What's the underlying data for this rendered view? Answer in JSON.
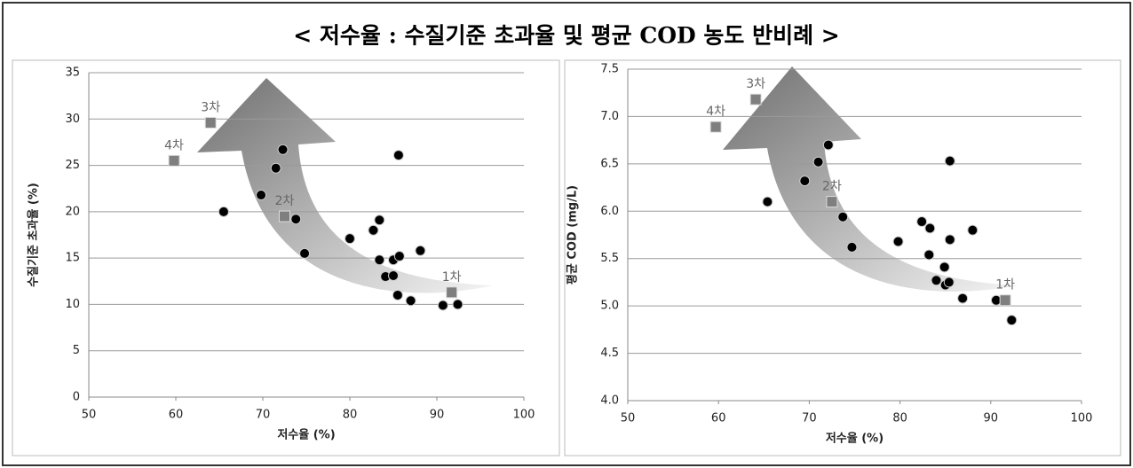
{
  "title": "< 저수율 : 수질기준 초과율 및 평균 COD 농도 반비례 >",
  "chart_data": [
    {
      "type": "scatter",
      "xlabel": "저수율 (%)",
      "ylabel": "수질기준 초과율 (%)",
      "xlim": [
        50,
        100
      ],
      "xticks": [
        50,
        60,
        70,
        80,
        90,
        100
      ],
      "ylim": [
        0,
        35
      ],
      "yticks": [
        0,
        5,
        10,
        15,
        20,
        25,
        30,
        35
      ],
      "grid": true,
      "series": [
        {
          "color": "#000000",
          "marker": "circle",
          "x": [
            65.5,
            69.8,
            71.5,
            72.3,
            73.8,
            74.8,
            80,
            82.7,
            83.4,
            83.4,
            84.1,
            85,
            85,
            85.5,
            85.7,
            85.6,
            87,
            88.1,
            90.7,
            92.4
          ],
          "values": [
            20,
            21.8,
            24.7,
            26.7,
            19.2,
            15.5,
            17.1,
            18,
            19.1,
            14.8,
            13,
            14.8,
            13.1,
            11,
            15.2,
            26.1,
            10.4,
            15.8,
            9.9,
            10
          ]
        },
        {
          "color": "#7f7f7f",
          "marker": "square",
          "x": [
            91.7,
            72.5,
            64,
            59.8
          ],
          "values": [
            11.3,
            19.5,
            29.6,
            25.5
          ],
          "labels": [
            "1차",
            "2차",
            "3차",
            "4차"
          ]
        }
      ]
    },
    {
      "type": "scatter",
      "xlabel": "저수율 (%)",
      "ylabel": "평균 COD (mg/L)",
      "xlim": [
        50,
        100
      ],
      "xticks": [
        50,
        60,
        70,
        80,
        90,
        100
      ],
      "ylim": [
        4,
        7.5
      ],
      "yticks": [
        {
          "value": 4,
          "label": "4.0"
        },
        4.5,
        {
          "value": 5,
          "label": "5.0"
        },
        5.5,
        {
          "value": 6,
          "label": "6.0"
        },
        6.5,
        {
          "value": 7,
          "label": "7.0"
        },
        7.5
      ],
      "grid": true,
      "series": [
        {
          "color": "#000000",
          "marker": "circle",
          "x": [
            65.4,
            69.5,
            71,
            72.1,
            73.7,
            74.7,
            79.8,
            82.4,
            83.3,
            83.2,
            84,
            84.9,
            85,
            85.4,
            85.5,
            85.5,
            86.9,
            88,
            90.6,
            92.3
          ],
          "values": [
            6.1,
            6.32,
            6.52,
            6.7,
            5.94,
            5.62,
            5.68,
            5.89,
            5.82,
            5.54,
            5.27,
            5.41,
            5.22,
            5.25,
            5.7,
            6.53,
            5.08,
            5.8,
            5.06,
            4.85
          ]
        },
        {
          "color": "#7f7f7f",
          "marker": "square",
          "x": [
            91.6,
            72.5,
            64.1,
            59.7
          ],
          "values": [
            5.06,
            6.1,
            7.18,
            6.89
          ],
          "labels": [
            "1차",
            "2차",
            "3차",
            "4차"
          ]
        }
      ]
    }
  ]
}
